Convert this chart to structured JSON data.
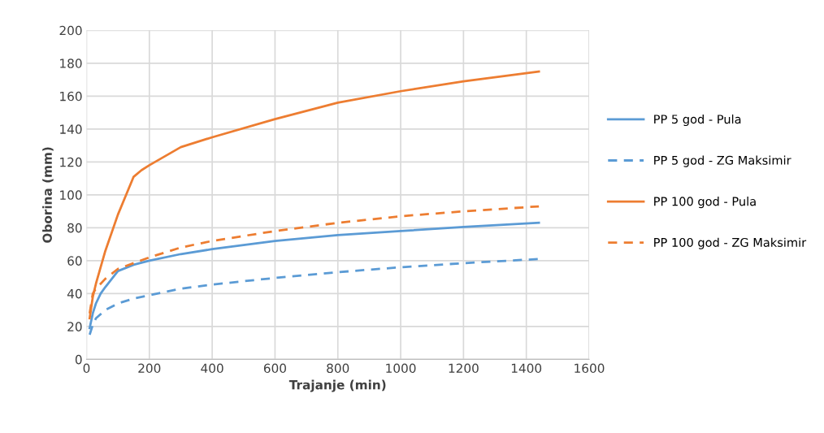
{
  "chart_data": {
    "type": "line",
    "xlabel": "Trajanje (min)",
    "ylabel": "Oborina (mm)",
    "xlim": [
      0,
      1600
    ],
    "xticks": [
      0,
      200,
      400,
      600,
      800,
      1000,
      1200,
      1400,
      1600
    ],
    "ylim": [
      0,
      200
    ],
    "yticks": [
      0,
      20,
      40,
      60,
      80,
      100,
      120,
      140,
      160,
      180,
      200
    ],
    "grid": true,
    "legend": "right",
    "marker": "none",
    "series": [
      {
        "name": "PP 5 god - Pula",
        "color": "#5b9bd5",
        "line_style": "solid",
        "x": [
          10,
          20,
          30,
          45,
          60,
          100,
          150,
          200,
          300,
          400,
          600,
          800,
          1000,
          1200,
          1440
        ],
        "values": [
          19,
          28,
          34,
          40,
          44,
          53.7,
          57.5,
          60,
          64,
          67,
          72,
          75.5,
          78,
          80.5,
          83
        ]
      },
      {
        "name": "PP 5 god - ZG Maksimir",
        "color": "#5b9bd5",
        "line_style": "dashed",
        "x": [
          10,
          20,
          30,
          60,
          100,
          150,
          200,
          300,
          400,
          600,
          800,
          1000,
          1200,
          1440
        ],
        "values": [
          15,
          21,
          25,
          30,
          34,
          37,
          39,
          43,
          45.5,
          49.5,
          53,
          56,
          58.5,
          61
        ]
      },
      {
        "name": "PP 100 god - Pula",
        "color": "#ed7d31",
        "line_style": "solid",
        "x": [
          10,
          20,
          30,
          60,
          100,
          150,
          175,
          200,
          300,
          400,
          600,
          800,
          1000,
          1200,
          1440
        ],
        "values": [
          25,
          38,
          46,
          66,
          88,
          111,
          115,
          118,
          129,
          135,
          146,
          156,
          163,
          169,
          175
        ]
      },
      {
        "name": "PP 100 god - ZG Maksimir",
        "color": "#ed7d31",
        "line_style": "dashed",
        "x": [
          10,
          20,
          30,
          60,
          100,
          200,
          300,
          400,
          600,
          800,
          1000,
          1200,
          1440
        ],
        "values": [
          28,
          40,
          43,
          49,
          55,
          62,
          68,
          72,
          78,
          83,
          87,
          90,
          93
        ]
      }
    ]
  }
}
